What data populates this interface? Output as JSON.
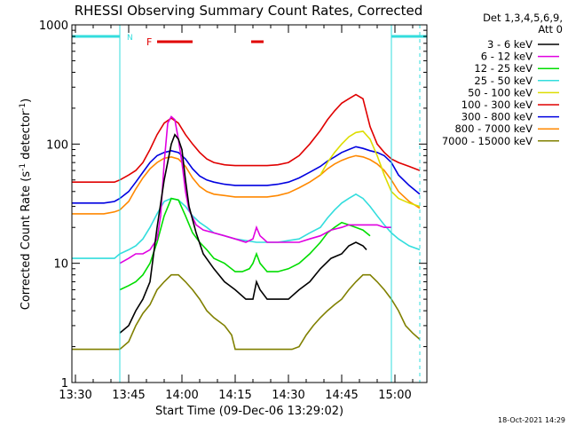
{
  "chart_data": {
    "type": "line",
    "title": "RHESSI Observing Summary Count Rates, Corrected",
    "xlabel": "Start Time (09-Dec-06 13:29:02)",
    "ylabel": "Corrected Count Rate (s⁻¹ detector⁻¹)",
    "ylabel_main": "Corrected Count Rate (s",
    "ylabel_mid": " detector",
    "ylabel_end": ")",
    "ylabel_sup": "-1",
    "y_scale": "log",
    "ylim": [
      1,
      1000
    ],
    "xlim_minutes": [
      0,
      100
    ],
    "x_tick_labels": [
      "13:30",
      "13:45",
      "14:00",
      "14:15",
      "14:30",
      "14:45",
      "15:00"
    ],
    "x_tick_minutes": [
      1,
      16,
      31,
      46,
      61,
      76,
      91
    ],
    "y_tick_labels": [
      "1",
      "10",
      "100",
      "1000"
    ],
    "y_tick_values": [
      1,
      10,
      100,
      1000
    ],
    "legend_header": [
      "Det 1,3,4,5,6,9,",
      "Att 0"
    ],
    "legend_placement": "right",
    "timestamp": "18-Oct-2021 14:29",
    "flags": {
      "night_label": "N",
      "flare_label": "F",
      "night_color": "#33dddd",
      "flare_color": "#e00000",
      "night_intervals": [
        [
          0,
          13.5
        ],
        [
          90,
          100
        ]
      ],
      "flare_intervals": [
        [
          24,
          34
        ],
        [
          50.5,
          54
        ]
      ],
      "saa_lines": [
        13.5,
        90
      ],
      "night_dashed_lines": [
        13.5,
        98
      ]
    },
    "series": [
      {
        "name": "3 - 6 keV",
        "color": "#000000",
        "x": [
          13.5,
          16,
          18,
          20,
          22,
          24,
          26,
          28,
          29,
          30,
          31,
          32,
          33,
          35,
          37,
          40,
          43,
          46,
          49,
          51,
          52,
          53,
          55,
          58,
          61,
          64,
          67,
          70,
          73,
          76,
          78,
          80,
          82,
          83
        ],
        "y": [
          2.6,
          3,
          4,
          5,
          7,
          20,
          50,
          100,
          120,
          110,
          90,
          50,
          30,
          18,
          12,
          9,
          7,
          6,
          5,
          5,
          7,
          6,
          5,
          5,
          5,
          6,
          7,
          9,
          11,
          12,
          14,
          15,
          14,
          13
        ]
      },
      {
        "name": "6 - 12 keV",
        "color": "#e000e0",
        "x": [
          13.5,
          16,
          18,
          20,
          22,
          24,
          25,
          26,
          27,
          28,
          29,
          30,
          31,
          32,
          33,
          35,
          37,
          40,
          43,
          46,
          49,
          51,
          52,
          53,
          54,
          55,
          58,
          61,
          64,
          67,
          70,
          73,
          76,
          78,
          80,
          82,
          84,
          86,
          88,
          90
        ],
        "y": [
          10,
          11,
          12,
          12,
          13,
          16,
          25,
          70,
          150,
          170,
          160,
          110,
          70,
          40,
          28,
          21,
          19,
          18,
          17,
          16,
          15,
          16,
          20,
          17,
          16,
          15,
          15,
          15,
          15,
          16,
          17,
          19,
          20,
          21,
          21,
          21,
          21,
          21,
          20,
          20
        ]
      },
      {
        "name": "12 - 25 keV",
        "color": "#00dd00",
        "x": [
          13.5,
          16,
          18,
          20,
          22,
          24,
          26,
          28,
          30,
          32,
          34,
          36,
          38,
          40,
          43,
          46,
          48,
          50,
          51,
          52,
          53,
          55,
          58,
          61,
          64,
          67,
          70,
          72,
          74,
          76,
          78,
          80,
          82,
          84
        ],
        "y": [
          6,
          6.5,
          7,
          8,
          10,
          15,
          25,
          35,
          34,
          25,
          18,
          15,
          13,
          11,
          10,
          8.5,
          8.5,
          9,
          10,
          12,
          10,
          8.5,
          8.5,
          9,
          10,
          12,
          15,
          18,
          20,
          22,
          21,
          20,
          19,
          17
        ]
      },
      {
        "name": "25 - 50 keV",
        "color": "#33dddd",
        "x": [
          0,
          3,
          6,
          9,
          12,
          13.5,
          16,
          18,
          20,
          22,
          24,
          26,
          28,
          30,
          32,
          34,
          36,
          38,
          40,
          43,
          46,
          49,
          52,
          55,
          58,
          61,
          64,
          67,
          70,
          72,
          74,
          76,
          78,
          80,
          82,
          84,
          86,
          88,
          90,
          92,
          95,
          98
        ],
        "y": [
          11,
          11,
          11,
          11,
          11,
          12,
          13,
          14,
          16,
          20,
          26,
          33,
          35,
          34,
          30,
          25,
          22,
          20,
          18,
          17,
          16,
          15.5,
          15,
          15,
          15,
          15.5,
          16,
          18,
          20,
          24,
          28,
          32,
          35,
          38,
          35,
          30,
          25,
          21,
          18,
          16,
          14,
          13
        ]
      },
      {
        "name": "50 - 100 keV",
        "color": "#dddd00",
        "x": [
          70,
          72,
          74,
          76,
          78,
          80,
          82,
          84,
          86,
          88,
          90,
          92,
          95,
          98
        ],
        "y": [
          55,
          70,
          85,
          100,
          115,
          125,
          128,
          110,
          80,
          55,
          40,
          35,
          32,
          30
        ]
      },
      {
        "name": "100 - 300 keV",
        "color": "#e00000",
        "x": [
          0,
          3,
          6,
          9,
          12,
          13.5,
          16,
          18,
          20,
          22,
          24,
          26,
          28,
          30,
          32,
          34,
          36,
          38,
          40,
          43,
          46,
          49,
          52,
          55,
          58,
          61,
          64,
          67,
          70,
          72,
          74,
          76,
          78,
          80,
          82,
          84,
          86,
          88,
          90,
          92,
          95,
          98
        ],
        "y": [
          48,
          48,
          48,
          48,
          48,
          50,
          55,
          60,
          70,
          90,
          120,
          150,
          165,
          150,
          120,
          100,
          85,
          75,
          70,
          67,
          66,
          66,
          66,
          66,
          67,
          70,
          80,
          100,
          130,
          160,
          190,
          220,
          240,
          260,
          240,
          140,
          100,
          85,
          75,
          70,
          65,
          60
        ]
      },
      {
        "name": "300 - 800 keV",
        "color": "#0000e0",
        "x": [
          0,
          3,
          6,
          9,
          12,
          13.5,
          16,
          18,
          20,
          22,
          24,
          26,
          28,
          30,
          32,
          34,
          36,
          38,
          40,
          43,
          46,
          49,
          52,
          55,
          58,
          61,
          64,
          67,
          70,
          72,
          74,
          76,
          78,
          80,
          82,
          84,
          86,
          88,
          90,
          92,
          95,
          98
        ],
        "y": [
          32,
          32,
          32,
          32,
          33,
          35,
          40,
          48,
          58,
          70,
          80,
          85,
          88,
          85,
          75,
          62,
          54,
          50,
          48,
          46,
          45,
          45,
          45,
          45,
          46,
          48,
          52,
          58,
          65,
          72,
          78,
          85,
          90,
          95,
          92,
          88,
          85,
          80,
          70,
          55,
          45,
          38
        ]
      },
      {
        "name": "800 - 7000 keV",
        "color": "#ff8800",
        "x": [
          0,
          3,
          6,
          9,
          12,
          13.5,
          16,
          18,
          20,
          22,
          24,
          26,
          28,
          30,
          32,
          34,
          36,
          38,
          40,
          43,
          46,
          49,
          52,
          55,
          58,
          61,
          64,
          67,
          70,
          72,
          74,
          76,
          78,
          80,
          82,
          84,
          86,
          88,
          90,
          92,
          95,
          98
        ],
        "y": [
          26,
          26,
          26,
          26,
          27,
          28,
          33,
          42,
          52,
          62,
          70,
          76,
          78,
          75,
          65,
          52,
          44,
          40,
          38,
          37,
          36,
          36,
          36,
          36,
          37,
          39,
          43,
          48,
          55,
          62,
          68,
          73,
          77,
          80,
          78,
          74,
          68,
          60,
          50,
          40,
          33,
          29
        ]
      },
      {
        "name": "7000 - 15000 keV",
        "color": "#808000",
        "x": [
          0,
          3,
          6,
          9,
          12,
          13.5,
          16,
          18,
          20,
          22,
          24,
          26,
          28,
          30,
          32,
          34,
          36,
          38,
          40,
          43,
          45,
          46,
          48,
          50,
          52,
          54,
          56,
          58,
          60,
          62,
          64,
          66,
          68,
          70,
          72,
          74,
          76,
          78,
          80,
          82,
          84,
          86,
          88,
          90,
          92,
          94,
          96,
          98
        ],
        "y": [
          1.9,
          1.9,
          1.9,
          1.9,
          1.9,
          1.9,
          2.2,
          3,
          3.8,
          4.5,
          6,
          7,
          8,
          8,
          7,
          6,
          5,
          4,
          3.5,
          3,
          2.5,
          1.9,
          1.9,
          1.9,
          1.9,
          1.9,
          1.9,
          1.9,
          1.9,
          1.9,
          2,
          2.5,
          3,
          3.5,
          4,
          4.5,
          5,
          6,
          7,
          8,
          8,
          7,
          6,
          5,
          4,
          3,
          2.6,
          2.3
        ]
      }
    ]
  }
}
